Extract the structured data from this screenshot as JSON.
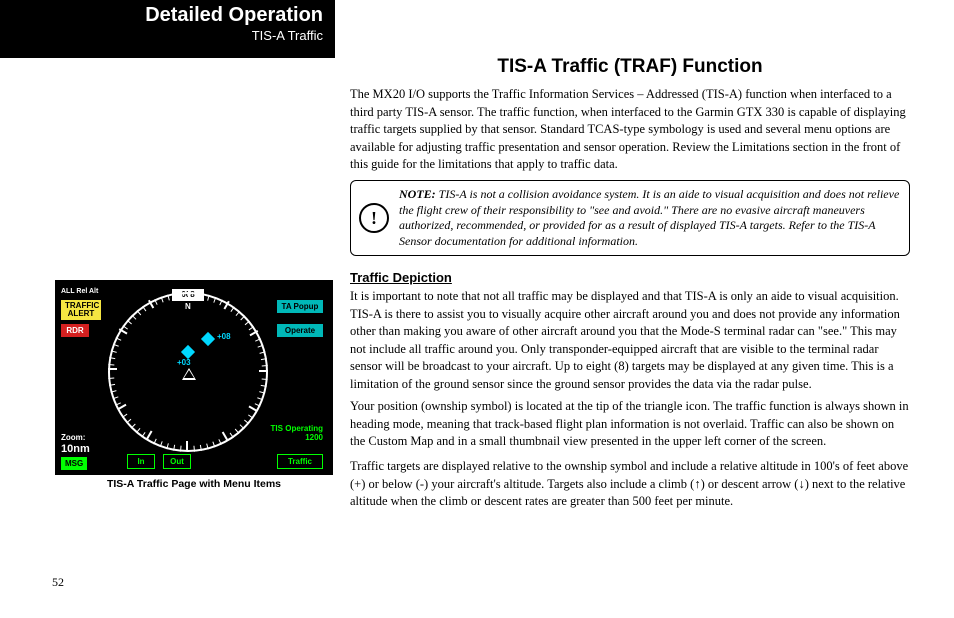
{
  "header": {
    "title": "Detailed Operation",
    "subtitle": "TIS-A Traffic"
  },
  "section_title": "TIS-A Traffic (TRAF) Function",
  "intro": "The MX20 I/O supports the Traffic Information Services – Addressed (TIS-A) function when interfaced to a third party TIS-A sensor. The traffic function, when interfaced to the Garmin GTX 330 is capable of displaying traffic targets supplied by that sensor. Standard TCAS-type symbology is used and several menu options are available for adjusting traffic presentation and sensor operation. Review the Limitations section in the front of this guide for the limitations that apply to traffic data.",
  "note": {
    "label": "NOTE:",
    "text": "  TIS-A is not a collision avoidance system. It is an aide to visual acquisition and does not relieve the flight crew of their responsibility to \"see and avoid.\" There are no evasive aircraft maneuvers authorized, recommended, or provided for as a result of displayed TIS-A targets. Refer to the TIS-A Sensor documentation for additional information."
  },
  "sub_heading": "Traffic Depiction",
  "body": {
    "p1": "It is important to note that not all traffic may be displayed and that TIS-A is only an aide to visual acquisition. TIS-A is there to assist you to visually acquire other aircraft around you and does not provide any information other than making you aware of other aircraft around you that the Mode-S terminal radar can \"see.\" This may not include all traffic around you. Only transponder-equipped aircraft that are visible to the terminal radar sensor will be broadcast to your aircraft. Up to eight (8) targets may be displayed at any given time. This is a limitation of the ground sensor since the ground sensor provides the data via the radar pulse.",
    "p2": "Your position (ownship symbol) is located at the tip of the triangle icon. The traffic function is always shown in heading mode, meaning that track-based flight plan information is not overlaid. Traffic can also be shown on the Custom Map and in a small thumbnail view presented in the upper left corner of the screen.",
    "p3a": "Traffic targets are displayed relative to the ownship symbol and include a relative altitude in 100's of feet above (+) or below (-) your aircraft's altitude. Targets also include a climb (",
    "p3b": ") or descent arrow (",
    "p3c": ") next to the relative altitude when the climb or descent rates are greater than 500 feet per minute."
  },
  "figure": {
    "heading_value": "008",
    "top_left": "ALL Rel Alt",
    "traffic_alert": "TRAFFIC\nALERT",
    "rdr": "RDR",
    "ta_popup": "TA Popup",
    "operate": "Operate",
    "in": "In",
    "out": "Out",
    "traffic": "Traffic",
    "zoom_lbl": "Zoom:",
    "zoom_val": "10nm",
    "tis_op": "TIS Operating",
    "tis_cnt": "1200",
    "msg": "MSG",
    "td1_label": "+03",
    "td2_label": "+08",
    "n": "N",
    "caption": "TIS-A Traffic Page with Menu Items"
  },
  "page_num": "52"
}
